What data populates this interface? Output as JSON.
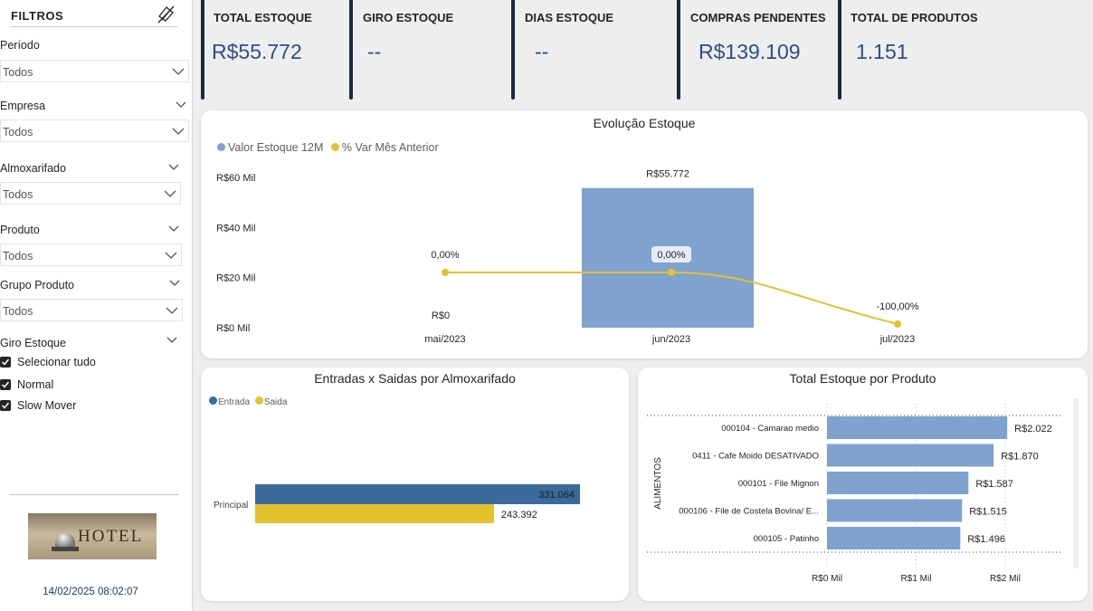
{
  "sidebar": {
    "title": "FILTROS",
    "clear_icon": "eraser-icon",
    "slicers": [
      {
        "label": "Período",
        "value": "Todos"
      },
      {
        "label": "Empresa",
        "value": "Todos"
      },
      {
        "label": "Almoxarifado",
        "value": "Todos"
      },
      {
        "label": "Produto",
        "value": "Todos"
      },
      {
        "label": "Grupo Produto",
        "value": "Todos"
      }
    ],
    "giro": {
      "label": "Giro Estoque",
      "options": [
        {
          "label": "Selecionar tudo",
          "checked": true
        },
        {
          "label": "Normal",
          "checked": true
        },
        {
          "label": "Slow Mover",
          "checked": true
        }
      ]
    },
    "image_sign": "HOTEL",
    "timestamp": "14/02/2025 08:02:07"
  },
  "kpis": [
    {
      "title": "TOTAL ESTOQUE",
      "value": "R$55.772"
    },
    {
      "title": "GIRO ESTOQUE",
      "value": "--"
    },
    {
      "title": "DIAS ESTOQUE",
      "value": "--"
    },
    {
      "title": "COMPRAS PENDENTES",
      "value": "R$139.109"
    },
    {
      "title": "TOTAL DE PRODUTOS",
      "value": "1.151"
    }
  ],
  "colors": {
    "bar_blue": "#7fa2cf",
    "line_yellow": "#e3c22e",
    "entrada": "#3a6a9c",
    "saida": "#e3c22e",
    "kpi_value": "#2c4f86"
  },
  "chart_data": [
    {
      "type": "bar",
      "title": "Evolução Estoque",
      "legend": [
        "Valor Estoque 12M",
        "% Var Mês Anterior"
      ],
      "categories": [
        "mai/2023",
        "jun/2023",
        "jul/2023"
      ],
      "series": [
        {
          "name": "Valor Estoque 12M",
          "values": [
            0,
            55772,
            null
          ],
          "labels": [
            "R$0",
            "R$55.772",
            ""
          ]
        },
        {
          "name": "% Var Mês Anterior",
          "type": "line",
          "values": [
            0,
            0,
            -100
          ],
          "labels": [
            "0,00%",
            "0,00%",
            "-100,00%"
          ]
        }
      ],
      "yticks": [
        "R$0 Mil",
        "R$20 Mil",
        "R$40 Mil",
        "R$60 Mil"
      ],
      "ylim": [
        0,
        60000
      ],
      "legend_position": "top-left"
    },
    {
      "type": "bar",
      "orientation": "horizontal",
      "title": "Entradas x Saidas por Almoxarifado",
      "legend": [
        "Entrada",
        "Saida"
      ],
      "categories": [
        "Principal"
      ],
      "series": [
        {
          "name": "Entrada",
          "values": [
            331064
          ],
          "labels": [
            "331.064"
          ]
        },
        {
          "name": "Saida",
          "values": [
            243392
          ],
          "labels": [
            "243.392"
          ]
        }
      ],
      "legend_position": "top-left"
    },
    {
      "type": "bar",
      "orientation": "horizontal",
      "title": "Total Estoque por Produto",
      "group_label": "ALIMENTOS",
      "categories": [
        "000104 - Camarao medio",
        "0411 - Cafe Moido DESATIVADO",
        "000101 - File Mignon",
        "000106 - File de Costela Bovina/ E...",
        "000105 - Patinho"
      ],
      "values": [
        2022,
        1870,
        1587,
        1515,
        1496
      ],
      "value_labels": [
        "R$2.022",
        "R$1.870",
        "R$1.587",
        "R$1.515",
        "R$1.496"
      ],
      "xticks": [
        "R$0 Mil",
        "R$1 Mil",
        "R$2 Mil"
      ],
      "xlim": [
        0,
        2000
      ]
    }
  ]
}
